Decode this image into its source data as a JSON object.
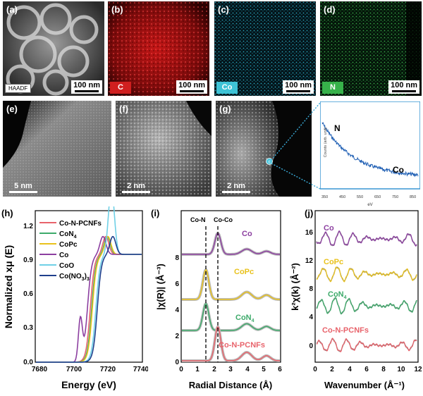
{
  "top_row": {
    "a": {
      "label": "(a)",
      "tag": "HAADF",
      "scale": "100 nm"
    },
    "b": {
      "label": "(b)",
      "element": "C",
      "scale": "100 nm",
      "color": "#d01f1f"
    },
    "c": {
      "label": "(c)",
      "element": "Co",
      "scale": "100 nm",
      "color": "#3ec3d6"
    },
    "d": {
      "label": "(d)",
      "element": "N",
      "scale": "100 nm",
      "color": "#37b24a"
    }
  },
  "mid_row": {
    "e": {
      "label": "(e)",
      "scale": "5 nm"
    },
    "f": {
      "label": "(f)",
      "scale": "2 nm"
    },
    "g": {
      "label": "(g)",
      "scale": "2 nm"
    },
    "eels": {
      "ylabel": "Counts (arb. unit)",
      "xlabel": "eV",
      "ticks": [
        "350",
        "450",
        "550",
        "650",
        "750",
        "850"
      ],
      "peak_n": "N",
      "peak_co": "Co"
    }
  },
  "panel_h": {
    "label": "(h)",
    "ylabel": "Normalized xμ (E)",
    "xlabel": "Energy (eV)",
    "xticks": [
      "7680",
      "7700",
      "7720",
      "7740"
    ],
    "yticks": [
      "0.0",
      "0.3",
      "0.6",
      "0.9",
      "1.2"
    ],
    "legend": [
      {
        "name": "Co-N-PCNFs",
        "color": "#e8636b"
      },
      {
        "name": "CoN",
        "sub": "4",
        "color": "#3daa6a"
      },
      {
        "name": "CoPc",
        "color": "#e9c21c"
      },
      {
        "name": "Co",
        "color": "#8c3fa0"
      },
      {
        "name": "CoO",
        "color": "#6fd0e6"
      },
      {
        "name": "Co(NO",
        "sub": "3",
        "tail": ")",
        "sub2": "3",
        "color": "#1f3f8c"
      }
    ]
  },
  "panel_i": {
    "label": "(i)",
    "ylabel": "|χ(R)| (Å⁻³)",
    "xlabel": "Radial Distance (Å)",
    "xticks": [
      "0",
      "1",
      "2",
      "3",
      "4",
      "5",
      "6"
    ],
    "yticks": [
      "0",
      "2",
      "4",
      "6",
      "8"
    ],
    "marker1": "Co-N",
    "marker2": "Co-Co",
    "labels": [
      {
        "text": "Co",
        "color": "#8c3fa0"
      },
      {
        "text": "CoPc",
        "color": "#e9c21c"
      },
      {
        "text": "CoN",
        "sub": "4",
        "color": "#3daa6a"
      },
      {
        "text": "Co-N-PCNFs",
        "color": "#e8636b"
      }
    ]
  },
  "panel_j": {
    "label": "(j)",
    "ylabel": "k²χ(k) (Å⁻²)",
    "xlabel": "Wavenumber (Å⁻¹)",
    "xticks": [
      "0",
      "2",
      "4",
      "6",
      "8",
      "10",
      "12"
    ],
    "yticks": [
      "0",
      "4",
      "8",
      "12",
      "16"
    ],
    "labels": [
      {
        "text": "Co",
        "color": "#8c3fa0"
      },
      {
        "text": "CoPc",
        "color": "#e9c21c"
      },
      {
        "text": "CoN",
        "sub": "4",
        "color": "#3daa6a"
      },
      {
        "text": "Co-N-PCNFs",
        "color": "#e8636b"
      }
    ]
  }
}
